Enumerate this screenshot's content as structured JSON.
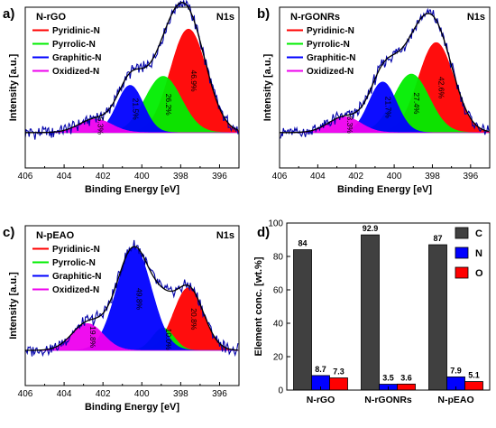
{
  "chart_data": [
    {
      "type": "line",
      "panel_label": "a)",
      "sample": "N-rGO",
      "core_level": "N1s",
      "xlabel": "Binding Energy [eV]",
      "ylabel": "Intensity [a.u.]",
      "xlim": [
        406,
        395
      ],
      "x_ticks": [
        "406",
        "404",
        "402",
        "400",
        "398",
        "396"
      ],
      "legend": [
        "Pyridinic-N",
        "Pyrrolic-N",
        "Graphitic-N",
        "Oxidized-N"
      ],
      "series": [
        {
          "name": "Pyridinic-N",
          "color": "#ff0000",
          "center": 397.6,
          "fwhm": 2.2,
          "height": 0.92,
          "label": "46.9%"
        },
        {
          "name": "Pyrrolic-N",
          "color": "#00ee00",
          "center": 398.9,
          "fwhm": 2.2,
          "height": 0.5,
          "label": "26.2%"
        },
        {
          "name": "Graphitic-N",
          "color": "#0000ff",
          "center": 400.6,
          "fwhm": 1.6,
          "height": 0.42,
          "label": "21.5%"
        },
        {
          "name": "Oxidized-N",
          "color": "#ee00ee",
          "center": 402.4,
          "fwhm": 2.0,
          "height": 0.12,
          "label": "5.3%"
        }
      ],
      "envelope_color": "#000000",
      "raw_color": "#0000aa"
    },
    {
      "type": "line",
      "panel_label": "b)",
      "sample": "N-rGONRs",
      "core_level": "N1s",
      "xlabel": "Binding Energy [eV]",
      "ylabel": "Intensity [a.u.]",
      "xlim": [
        406,
        395
      ],
      "x_ticks": [
        "406",
        "404",
        "402",
        "400",
        "398",
        "396"
      ],
      "legend": [
        "Pyridinic-N",
        "Pyrrolic-N",
        "Graphitic-N",
        "Oxidized-N"
      ],
      "series": [
        {
          "name": "Pyridinic-N",
          "color": "#ff0000",
          "center": 397.8,
          "fwhm": 2.2,
          "height": 0.8,
          "label": "42.6%"
        },
        {
          "name": "Pyrrolic-N",
          "color": "#00ee00",
          "center": 399.1,
          "fwhm": 2.2,
          "height": 0.52,
          "label": "27.4%"
        },
        {
          "name": "Graphitic-N",
          "color": "#0000ff",
          "center": 400.6,
          "fwhm": 1.7,
          "height": 0.45,
          "label": "21.7%"
        },
        {
          "name": "Oxidized-N",
          "color": "#ee00ee",
          "center": 402.6,
          "fwhm": 2.0,
          "height": 0.14,
          "label": "8.3%"
        }
      ],
      "envelope_color": "#000000",
      "raw_color": "#0000aa"
    },
    {
      "type": "line",
      "panel_label": "c)",
      "sample": "N-pEAO",
      "core_level": "N1s",
      "xlabel": "Binding Energy [eV]",
      "ylabel": "Intensity [a.u.]",
      "xlim": [
        406,
        395
      ],
      "x_ticks": [
        "406",
        "404",
        "402",
        "400",
        "398",
        "396"
      ],
      "legend": [
        "Pyridinic-N",
        "Pyrrolic-N",
        "Graphitic-N",
        "Oxidized-N"
      ],
      "series": [
        {
          "name": "Pyridinic-N",
          "color": "#ff0000",
          "center": 397.6,
          "fwhm": 1.8,
          "height": 0.56,
          "label": "20.8%"
        },
        {
          "name": "Pyrrolic-N",
          "color": "#00ee00",
          "center": 398.9,
          "fwhm": 1.3,
          "height": 0.2,
          "label": "10.0%"
        },
        {
          "name": "Graphitic-N",
          "color": "#0000ff",
          "center": 400.4,
          "fwhm": 2.1,
          "height": 0.92,
          "label": "49.8%"
        },
        {
          "name": "Oxidized-N",
          "color": "#ee00ee",
          "center": 402.8,
          "fwhm": 1.9,
          "height": 0.24,
          "label": "19.8%"
        }
      ],
      "envelope_color": "#000000",
      "raw_color": "#0000aa"
    },
    {
      "type": "bar",
      "panel_label": "d)",
      "categories": [
        "N-rGO",
        "N-rGONRs",
        "N-pEAO"
      ],
      "series": [
        {
          "name": "C",
          "color": "#404040",
          "values": [
            84,
            92.9,
            87
          ],
          "labels": [
            "84",
            "92.9",
            "87"
          ]
        },
        {
          "name": "N",
          "color": "#0000ff",
          "values": [
            8.7,
            3.5,
            7.9
          ],
          "labels": [
            "8.7",
            "3.5",
            "7.9"
          ]
        },
        {
          "name": "O",
          "color": "#ff0000",
          "values": [
            7.3,
            3.6,
            5.1
          ],
          "labels": [
            "7.3",
            "3.6",
            "5.1"
          ]
        }
      ],
      "xlabel": "",
      "ylabel": "Element conc. [wt.%]",
      "ylim": [
        0,
        100
      ],
      "y_ticks": [
        "0",
        "20",
        "40",
        "60",
        "80",
        "100"
      ],
      "legend_position": "top-right"
    }
  ]
}
